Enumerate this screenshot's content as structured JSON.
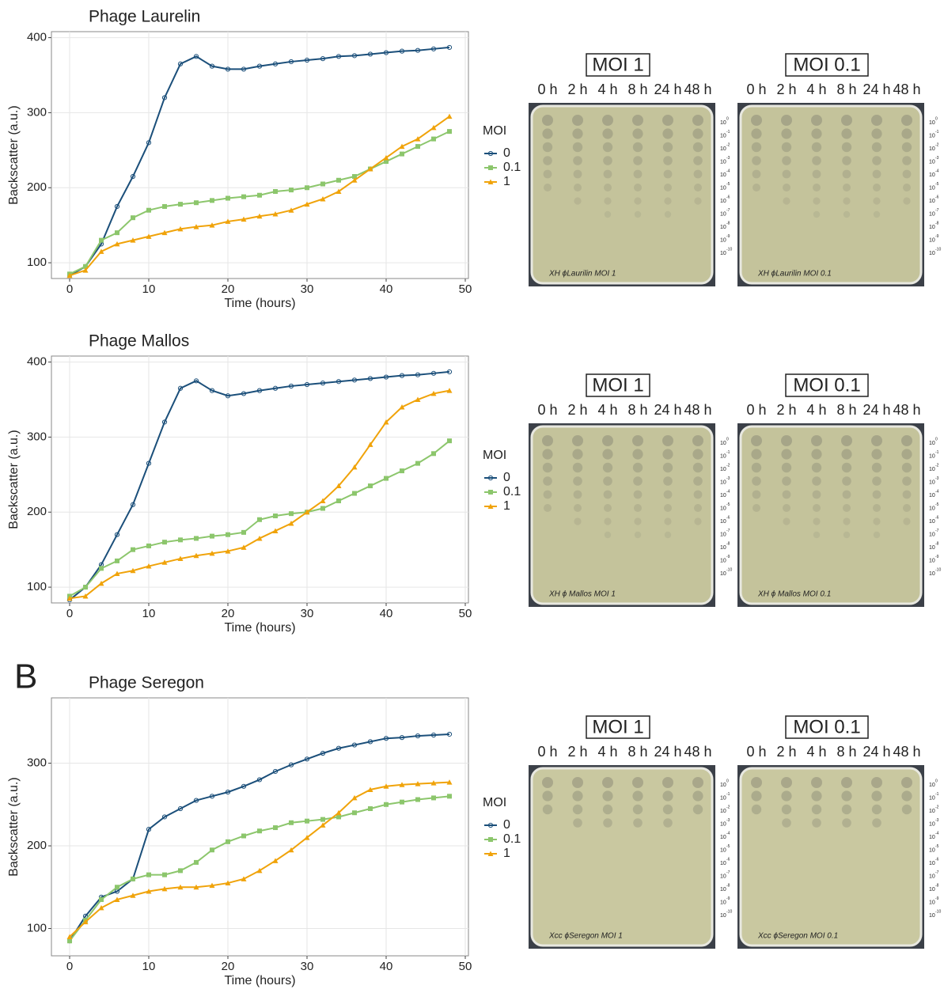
{
  "panel_label": "B",
  "chart_data": [
    {
      "type": "line",
      "title": "Phage Laurelin",
      "x_label": "Time (hours)",
      "y_label": "Backscatter (a.u.)",
      "legend_title": "MOI",
      "x": [
        0,
        2,
        4,
        6,
        8,
        10,
        12,
        14,
        16,
        18,
        20,
        22,
        24,
        26,
        28,
        30,
        32,
        34,
        36,
        38,
        40,
        42,
        44,
        46,
        48
      ],
      "series": [
        {
          "name": "0",
          "color": "#1b4f7a",
          "values": [
            83,
            95,
            125,
            175,
            215,
            260,
            320,
            365,
            375,
            362,
            358,
            358,
            362,
            365,
            368,
            370,
            372,
            375,
            376,
            378,
            380,
            382,
            383,
            385,
            387
          ]
        },
        {
          "name": "0.1",
          "color": "#8cc66c",
          "values": [
            85,
            95,
            130,
            140,
            160,
            170,
            175,
            178,
            180,
            183,
            186,
            188,
            190,
            195,
            197,
            200,
            205,
            210,
            215,
            225,
            235,
            245,
            255,
            265,
            275
          ]
        },
        {
          "name": "1",
          "color": "#f0a30a",
          "values": [
            83,
            90,
            115,
            125,
            130,
            135,
            140,
            145,
            148,
            150,
            155,
            158,
            162,
            165,
            170,
            178,
            185,
            195,
            210,
            225,
            240,
            255,
            265,
            280,
            295
          ]
        }
      ],
      "xlim": [
        -2.3,
        50.4
      ],
      "ylim": [
        79,
        408
      ],
      "xticks": [
        0,
        10,
        20,
        30,
        40,
        50
      ],
      "yticks": [
        100,
        200,
        300,
        400
      ],
      "grid": true
    },
    {
      "type": "line",
      "title": "Phage Mallos",
      "x_label": "Time (hours)",
      "y_label": "Backscatter (a.u.)",
      "legend_title": "MOI",
      "x": [
        0,
        2,
        4,
        6,
        8,
        10,
        12,
        14,
        16,
        18,
        20,
        22,
        24,
        26,
        28,
        30,
        32,
        34,
        36,
        38,
        40,
        42,
        44,
        46,
        48
      ],
      "series": [
        {
          "name": "0",
          "color": "#1b4f7a",
          "values": [
            83,
            100,
            130,
            170,
            210,
            265,
            320,
            365,
            375,
            362,
            355,
            358,
            362,
            365,
            368,
            370,
            372,
            374,
            376,
            378,
            380,
            382,
            383,
            385,
            387
          ]
        },
        {
          "name": "0.1",
          "color": "#8cc66c",
          "values": [
            88,
            100,
            125,
            135,
            150,
            155,
            160,
            163,
            165,
            168,
            170,
            173,
            190,
            195,
            198,
            200,
            205,
            215,
            225,
            235,
            245,
            255,
            265,
            278,
            295
          ]
        },
        {
          "name": "1",
          "color": "#f0a30a",
          "values": [
            85,
            88,
            105,
            118,
            122,
            128,
            133,
            138,
            142,
            145,
            148,
            153,
            165,
            175,
            185,
            200,
            215,
            235,
            260,
            290,
            320,
            340,
            350,
            358,
            362
          ]
        }
      ],
      "xlim": [
        -2.3,
        50.4
      ],
      "ylim": [
        79,
        408
      ],
      "xticks": [
        0,
        10,
        20,
        30,
        40,
        50
      ],
      "yticks": [
        100,
        200,
        300,
        400
      ],
      "grid": true
    },
    {
      "type": "line",
      "title": "Phage Seregon",
      "x_label": "Time (hours)",
      "y_label": "Backscatter (a.u.)",
      "legend_title": "MOI",
      "x": [
        0,
        2,
        4,
        6,
        8,
        10,
        12,
        14,
        16,
        18,
        20,
        22,
        24,
        26,
        28,
        30,
        32,
        34,
        36,
        38,
        40,
        42,
        44,
        46,
        48
      ],
      "series": [
        {
          "name": "0",
          "color": "#1b4f7a",
          "values": [
            85,
            115,
            138,
            145,
            160,
            220,
            235,
            245,
            255,
            260,
            265,
            272,
            280,
            290,
            298,
            305,
            312,
            318,
            322,
            326,
            330,
            331,
            333,
            334,
            335
          ]
        },
        {
          "name": "0.1",
          "color": "#8cc66c",
          "values": [
            85,
            110,
            135,
            150,
            160,
            165,
            165,
            170,
            180,
            195,
            205,
            212,
            218,
            222,
            228,
            230,
            232,
            235,
            240,
            245,
            250,
            253,
            256,
            258,
            260
          ]
        },
        {
          "name": "1",
          "color": "#f0a30a",
          "values": [
            90,
            108,
            125,
            135,
            140,
            145,
            148,
            150,
            150,
            152,
            155,
            160,
            170,
            182,
            195,
            210,
            225,
            240,
            258,
            268,
            272,
            274,
            275,
            276,
            277
          ]
        }
      ],
      "xlim": [
        -2.3,
        50.4
      ],
      "ylim": [
        67,
        379
      ],
      "xticks": [
        0,
        10,
        20,
        30,
        40,
        50
      ],
      "yticks": [
        100,
        200,
        300
      ],
      "grid": true
    }
  ],
  "plates": [
    {
      "panels": [
        {
          "title": "MOI 1",
          "times": [
            "0 h",
            "2 h",
            "4 h",
            "8 h",
            "24 h",
            "48 h"
          ],
          "note": "XH ϕLaurilin MOI 1"
        },
        {
          "title": "MOI 0.1",
          "times": [
            "0 h",
            "2 h",
            "4 h",
            "8 h",
            "24 h",
            "48 h"
          ],
          "note": "XH ϕLaurilin MOI 0.1"
        }
      ]
    },
    {
      "panels": [
        {
          "title": "MOI 1",
          "times": [
            "0 h",
            "2 h",
            "4 h",
            "8 h",
            "24 h",
            "48 h"
          ],
          "note": "XH ϕ Mallos MOI 1"
        },
        {
          "title": "MOI 0.1",
          "times": [
            "0 h",
            "2 h",
            "4 h",
            "8 h",
            "24 h",
            "48 h"
          ],
          "note": "XH ϕ Mallos MOI 0.1"
        }
      ]
    },
    {
      "panels": [
        {
          "title": "MOI 1",
          "times": [
            "0 h",
            "2 h",
            "4 h",
            "8 h",
            "24 h",
            "48 h"
          ],
          "note": "Xcc ϕSeregon MOI 1"
        },
        {
          "title": "MOI 0.1",
          "times": [
            "0 h",
            "2 h",
            "4 h",
            "8 h",
            "24 h",
            "48 h"
          ],
          "note": "Xcc ϕSeregon MOI 0.1"
        }
      ]
    }
  ],
  "dilution_base": "10",
  "dilution_exponents": [
    "0",
    "-1",
    "-2",
    "-3",
    "-4",
    "-5",
    "-6",
    "-7",
    "-8",
    "-9",
    "-10"
  ]
}
